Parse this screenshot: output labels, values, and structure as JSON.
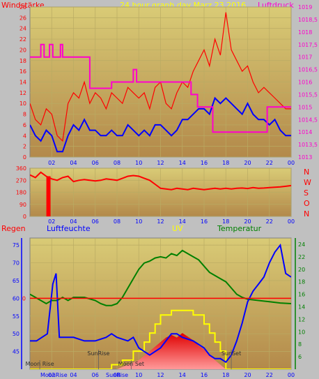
{
  "colors": {
    "frame": "#c0c0c0",
    "plot_top": "#d4c46e",
    "plot_bottom": "#b0884a",
    "wind_gust": "#ff0000",
    "wind_avg": "#0000ff",
    "pressure": "#ff00cc",
    "direction": "#ff0000",
    "rain": "#ff0000",
    "humidity": "#0000ff",
    "uv": "#ffff00",
    "temperature": "#008000",
    "sun_fill": "#ff0000"
  },
  "chart_data": [
    {
      "id": "wind_pressure",
      "type": "line",
      "title": "24 hour graph day   Marz 23 2016",
      "left_label": "Windstärke",
      "right_label": "Luftdruck",
      "x_ticks": [
        "02",
        "04",
        "06",
        "08",
        "10",
        "12",
        "14",
        "16",
        "18",
        "20",
        "22",
        "00"
      ],
      "xlim": [
        0,
        24
      ],
      "y_ticks_left": [
        "0",
        "2",
        "4",
        "6",
        "8",
        "10",
        "12",
        "14",
        "16",
        "18",
        "20",
        "22",
        "24",
        "26",
        "28"
      ],
      "ylim_left": [
        0,
        28
      ],
      "y_ticks_right": [
        "1013",
        "1013,5",
        "1014",
        "1014,5",
        "1015",
        "1015,5",
        "1016",
        "1016,5",
        "1017",
        "1017,5",
        "1018",
        "1018,5",
        "1019"
      ],
      "ylim_right": [
        1013,
        1019
      ],
      "grid": true,
      "series": [
        {
          "key": "gust",
          "axis": "left",
          "x": [
            0,
            0.5,
            1,
            1.5,
            2,
            2.5,
            3,
            3.5,
            4,
            4.5,
            5,
            5.5,
            6,
            6.5,
            7,
            7.5,
            8,
            8.5,
            9,
            9.5,
            10,
            10.5,
            11,
            11.5,
            12,
            12.5,
            13,
            13.5,
            14,
            14.5,
            15,
            15.5,
            16,
            16.5,
            17,
            17.5,
            18,
            18.5,
            19,
            19.5,
            20,
            20.5,
            21,
            21.5,
            22,
            22.5,
            23,
            23.5,
            24
          ],
          "values": [
            10,
            7,
            6,
            9,
            8,
            4,
            3,
            10,
            12,
            11,
            14,
            10,
            12,
            11,
            9,
            12,
            11,
            10,
            13,
            12,
            11,
            12,
            9,
            13,
            14,
            10,
            9,
            12,
            14,
            13,
            16,
            18,
            20,
            17,
            22,
            19,
            27,
            20,
            18,
            16,
            17,
            14,
            12,
            13,
            12,
            11,
            10,
            9,
            9
          ]
        },
        {
          "key": "average",
          "axis": "left",
          "x": [
            0,
            0.5,
            1,
            1.5,
            2,
            2.5,
            3,
            3.5,
            4,
            4.5,
            5,
            5.5,
            6,
            6.5,
            7,
            7.5,
            8,
            8.5,
            9,
            9.5,
            10,
            10.5,
            11,
            11.5,
            12,
            12.5,
            13,
            13.5,
            14,
            14.5,
            15,
            15.5,
            16,
            16.5,
            17,
            17.5,
            18,
            18.5,
            19,
            19.5,
            20,
            20.5,
            21,
            21.5,
            22,
            22.5,
            23,
            23.5,
            24
          ],
          "values": [
            6,
            4,
            3,
            5,
            4,
            1,
            1,
            4,
            6,
            5,
            7,
            5,
            5,
            4,
            4,
            5,
            4,
            4,
            6,
            5,
            4,
            5,
            4,
            6,
            6,
            5,
            4,
            5,
            7,
            7,
            8,
            9,
            9,
            8,
            11,
            10,
            11,
            10,
            9,
            8,
            10,
            8,
            7,
            7,
            6,
            7,
            5,
            4,
            4
          ]
        },
        {
          "key": "pressure",
          "axis": "right",
          "x": [
            0,
            1.0,
            1.0,
            1.3,
            1.3,
            1.8,
            1.8,
            2.1,
            2.1,
            2.8,
            2.8,
            3.0,
            3.0,
            5.5,
            5.5,
            7.5,
            7.5,
            9.5,
            9.5,
            9.8,
            9.8,
            14.8,
            14.8,
            15.4,
            15.4,
            16.8,
            16.8,
            19.5,
            19.5,
            21.8,
            21.8,
            24
          ],
          "values": [
            1017,
            1017,
            1017.5,
            1017.5,
            1017,
            1017,
            1017.5,
            1017.5,
            1017,
            1017,
            1017.5,
            1017.5,
            1017,
            1017,
            1015.75,
            1015.75,
            1016,
            1016,
            1016.5,
            1016.5,
            1016,
            1016,
            1015.5,
            1015.5,
            1015,
            1015,
            1014,
            1014,
            1014,
            1014,
            1015,
            1015
          ]
        }
      ]
    },
    {
      "id": "wind_direction",
      "type": "line",
      "x_ticks": [
        "02",
        "04",
        "06",
        "08",
        "10",
        "12",
        "14",
        "16",
        "18",
        "20",
        "22",
        "00"
      ],
      "xlim": [
        0,
        24
      ],
      "y_ticks": [
        "0",
        "90",
        "180",
        "270",
        "360"
      ],
      "ylim": [
        0,
        360
      ],
      "right_labels": [
        "N",
        "W",
        "S",
        "O",
        "N"
      ],
      "grid": true,
      "x": [
        0,
        0.5,
        1,
        1.5,
        2,
        2.5,
        3,
        3.5,
        4,
        4.5,
        5,
        5.5,
        6,
        6.5,
        7,
        7.5,
        8,
        8.5,
        9,
        9.5,
        10,
        10.5,
        11,
        11.5,
        12,
        12.5,
        13,
        13.5,
        14,
        14.5,
        15,
        15.5,
        16,
        16.5,
        17,
        17.5,
        18,
        18.5,
        19,
        19.5,
        20,
        20.5,
        21,
        21.5,
        22,
        22.5,
        23,
        23.5,
        24
      ],
      "values": [
        310,
        290,
        330,
        300,
        280,
        270,
        290,
        300,
        260,
        270,
        275,
        270,
        265,
        270,
        280,
        275,
        270,
        285,
        300,
        305,
        300,
        285,
        270,
        240,
        210,
        205,
        200,
        210,
        205,
        200,
        210,
        205,
        200,
        205,
        210,
        205,
        210,
        205,
        210,
        212,
        208,
        215,
        210,
        212,
        215,
        218,
        220,
        225,
        230
      ],
      "spike_x": 1.7
    },
    {
      "id": "rain_humidity_uv_temp",
      "type": "line",
      "labels": [
        "Regen",
        "Luftfeuchte",
        "UV",
        "Temperatur"
      ],
      "x_ticks": [
        "02",
        "04",
        "06",
        "08",
        "10",
        "12",
        "14",
        "16",
        "18",
        "20",
        "22",
        "00"
      ],
      "xlim": [
        0,
        24
      ],
      "humidity_ticks": [
        "45",
        "50",
        "55",
        "60",
        "65",
        "70",
        "75"
      ],
      "humidity_lim": [
        40,
        77
      ],
      "temperature_ticks": [
        "6",
        "8",
        "10",
        "12",
        "14",
        "16",
        "18",
        "20",
        "22",
        "24"
      ],
      "temperature_lim": [
        4,
        25
      ],
      "rain_tick": "0",
      "rain_value": 0,
      "events": [
        {
          "label": "Moon Rise",
          "x": 0.9
        },
        {
          "label": "SunRise",
          "x": 6.3
        },
        {
          "label": "Moon Set",
          "x": 9.3
        },
        {
          "label": "SunSet",
          "x": 18.5
        }
      ],
      "axis_bottom_labels": [
        "MoonRise",
        "SunRise"
      ],
      "series": [
        {
          "key": "humidity",
          "x": [
            0,
            0.6,
            1.1,
            1.6,
            2.1,
            2.4,
            2.7,
            3.2,
            4,
            5,
            6,
            7,
            7.5,
            8,
            9,
            9.5,
            10,
            10.5,
            11,
            11.5,
            12,
            12.5,
            13,
            13.5,
            14,
            15,
            16,
            16.5,
            17,
            17.5,
            18,
            18.5,
            19,
            19.5,
            20,
            20.5,
            21,
            21.5,
            22,
            22.5,
            23,
            23.5,
            24
          ],
          "values": [
            48,
            48,
            49,
            50,
            64,
            67,
            49,
            49,
            49,
            48,
            48,
            49,
            50,
            49,
            48,
            49,
            46,
            45,
            44,
            45,
            46,
            48,
            50,
            50,
            49,
            48,
            46,
            44,
            43,
            43,
            42,
            44,
            48,
            53,
            59,
            62,
            64,
            66,
            70,
            73,
            75,
            67,
            66
          ]
        },
        {
          "key": "temperature",
          "x": [
            0,
            0.5,
            1,
            1.5,
            2,
            2.5,
            3,
            3.5,
            4,
            5,
            6,
            6.5,
            7,
            7.5,
            8,
            8.5,
            9,
            9.5,
            10,
            10.5,
            11,
            11.5,
            12,
            12.5,
            13,
            13.5,
            14,
            14.5,
            15,
            15.5,
            16,
            16.5,
            17,
            17.5,
            18,
            18.5,
            19,
            19.5,
            20,
            21,
            22,
            23,
            24
          ],
          "values": [
            16,
            15.5,
            15,
            14.5,
            15,
            15,
            15.5,
            15,
            15.5,
            15.5,
            15,
            14.5,
            14.2,
            14.2,
            14.5,
            15.5,
            17,
            18.5,
            20,
            21,
            21.3,
            21.8,
            22,
            21.8,
            22.5,
            22.2,
            23,
            22.5,
            22,
            21.5,
            20.5,
            19.5,
            19,
            18.5,
            18,
            17,
            16,
            15.5,
            15.2,
            15,
            14.8,
            14.6,
            14.5
          ]
        },
        {
          "key": "uv",
          "x": [
            0,
            7.5,
            7.5,
            8.5,
            8.5,
            9.5,
            9.5,
            10.5,
            10.5,
            11,
            11,
            11.5,
            11.5,
            12,
            12,
            13,
            13,
            15,
            15,
            16,
            16,
            16.5,
            16.5,
            17,
            17,
            17.5,
            17.5,
            18,
            18,
            24
          ],
          "values": [
            0,
            0,
            0.5,
            0.5,
            1,
            1,
            2,
            2,
            3,
            3,
            4,
            4,
            5,
            5,
            6,
            6,
            6.5,
            6.5,
            6,
            6,
            5,
            5,
            4,
            4,
            3,
            3,
            2,
            2,
            0,
            0
          ]
        },
        {
          "key": "solar",
          "x": [
            8,
            9,
            10,
            10.5,
            11,
            11.5,
            12,
            12.5,
            13,
            13.5,
            14,
            14.5,
            15,
            15.5,
            16,
            16.5,
            17,
            17.5,
            18
          ],
          "values": [
            0,
            0.5,
            1,
            1.5,
            2,
            2.5,
            3,
            3.5,
            3.8,
            3.5,
            4,
            3.6,
            3.2,
            2.6,
            2.2,
            1.6,
            1,
            0.5,
            0
          ]
        }
      ]
    }
  ]
}
